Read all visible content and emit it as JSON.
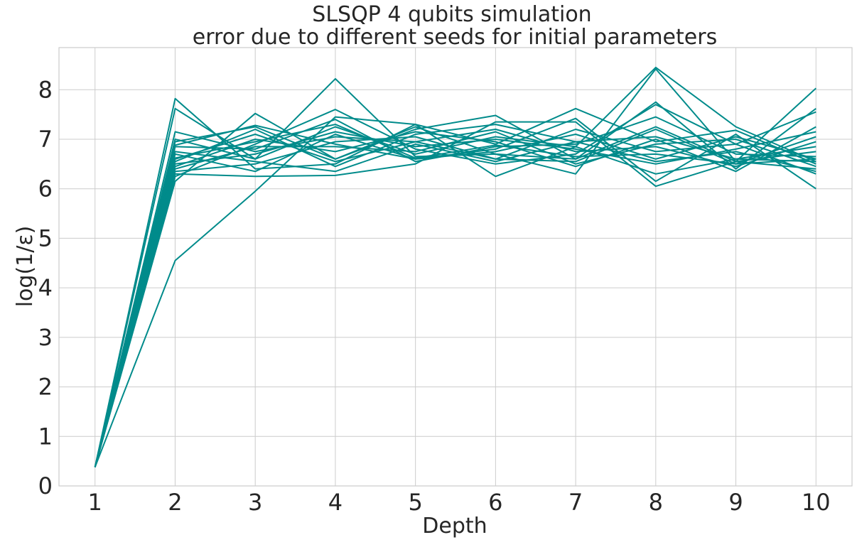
{
  "chart_data": {
    "type": "line",
    "title": "SLSQP 4 qubits simulation",
    "subtitle": "error due to different seeds for initial parameters",
    "xlabel": "Depth",
    "ylabel": "log(1/ε)",
    "x": [
      1,
      2,
      3,
      4,
      5,
      6,
      7,
      8,
      9,
      10
    ],
    "xticks": [
      "1",
      "2",
      "3",
      "4",
      "5",
      "6",
      "7",
      "8",
      "9",
      "10"
    ],
    "yticks": [
      "0",
      "1",
      "2",
      "3",
      "4",
      "5",
      "6",
      "7",
      "8"
    ],
    "xlim": [
      0.55,
      10.45
    ],
    "ylim": [
      0,
      8.85
    ],
    "grid": true,
    "line_color": "#008b8b",
    "series": [
      {
        "values": [
          0.38,
          7.82,
          6.4,
          6.5,
          7.3,
          6.25,
          6.85,
          8.45,
          7.25,
          6.55
        ]
      },
      {
        "values": [
          0.38,
          7.62,
          6.6,
          8.22,
          6.65,
          6.7,
          6.3,
          8.42,
          6.55,
          8.03
        ]
      },
      {
        "values": [
          0.38,
          4.55,
          5.95,
          7.45,
          7.3,
          6.9,
          7.62,
          6.95,
          7.18,
          6.5
        ]
      },
      {
        "values": [
          0.38,
          6.15,
          7.52,
          6.6,
          7.2,
          7.48,
          6.6,
          7.75,
          6.4,
          7.62
        ]
      },
      {
        "values": [
          0.38,
          6.3,
          6.25,
          6.27,
          6.5,
          7.35,
          7.35,
          6.05,
          6.55,
          6.4
        ]
      },
      {
        "values": [
          0.38,
          6.88,
          7.28,
          6.9,
          6.6,
          6.8,
          7.42,
          6.15,
          7.1,
          6.0
        ]
      },
      {
        "values": [
          0.38,
          7.15,
          6.75,
          7.05,
          6.95,
          6.6,
          6.55,
          7.2,
          6.5,
          7.05
        ]
      },
      {
        "values": [
          0.38,
          6.55,
          7.2,
          6.45,
          7.1,
          7.3,
          6.95,
          6.55,
          6.75,
          6.35
        ]
      },
      {
        "values": [
          0.38,
          6.25,
          6.9,
          7.6,
          6.8,
          6.5,
          6.7,
          7.7,
          6.9,
          7.55
        ]
      },
      {
        "values": [
          0.38,
          7.0,
          6.6,
          7.25,
          6.7,
          7.05,
          6.85,
          6.3,
          6.6,
          6.85
        ]
      },
      {
        "values": [
          0.38,
          6.45,
          7.0,
          6.75,
          7.15,
          6.95,
          6.45,
          7.0,
          6.35,
          7.25
        ]
      },
      {
        "values": [
          0.38,
          6.7,
          6.35,
          7.1,
          6.6,
          6.75,
          7.1,
          6.6,
          7.05,
          6.6
        ]
      },
      {
        "values": [
          0.38,
          6.6,
          7.1,
          6.55,
          6.95,
          7.2,
          6.75,
          6.85,
          6.45,
          6.95
        ]
      },
      {
        "values": [
          0.38,
          6.85,
          6.8,
          7.4,
          6.55,
          6.85,
          6.9,
          7.45,
          6.7,
          6.65
        ]
      },
      {
        "values": [
          0.38,
          6.35,
          6.5,
          6.95,
          7.05,
          6.6,
          7.2,
          6.75,
          6.9,
          6.3
        ]
      },
      {
        "values": [
          0.38,
          6.95,
          7.25,
          6.6,
          7.25,
          6.7,
          6.6,
          7.25,
          6.55,
          6.75
        ]
      },
      {
        "values": [
          0.38,
          6.5,
          6.7,
          7.15,
          6.85,
          7.0,
          6.8,
          6.5,
          6.8,
          7.15
        ]
      },
      {
        "values": [
          0.38,
          6.75,
          6.55,
          6.35,
          6.9,
          6.55,
          6.95,
          7.05,
          6.6,
          6.55
        ]
      },
      {
        "values": [
          0.38,
          6.4,
          6.85,
          6.85,
          6.75,
          7.15,
          6.5,
          6.9,
          7.0,
          6.45
        ]
      },
      {
        "values": [
          0.38,
          6.62,
          6.95,
          7.3,
          6.62,
          6.88,
          6.65,
          6.7,
          6.5,
          6.6
        ]
      }
    ]
  }
}
